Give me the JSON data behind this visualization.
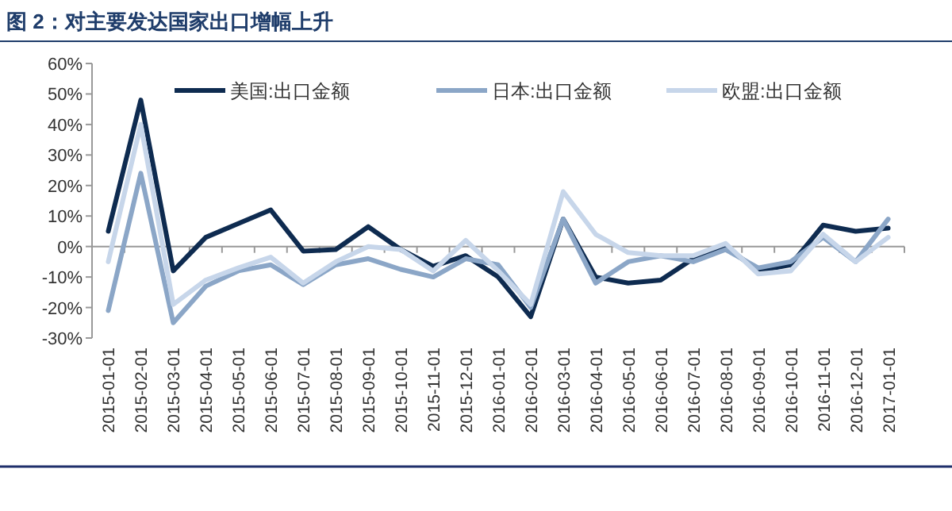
{
  "chart_data": {
    "type": "line",
    "title": "图 2：对主要发达国家出口增幅上升",
    "categories": [
      "2015-01-01",
      "2015-02-01",
      "2015-03-01",
      "2015-04-01",
      "2015-05-01",
      "2015-06-01",
      "2015-07-01",
      "2015-08-01",
      "2015-09-01",
      "2015-10-01",
      "2015-11-01",
      "2015-12-01",
      "2016-01-01",
      "2016-02-01",
      "2016-03-01",
      "2016-04-01",
      "2016-05-01",
      "2016-06-01",
      "2016-07-01",
      "2016-08-01",
      "2016-09-01",
      "2016-10-01",
      "2016-11-01",
      "2016-12-01",
      "2017-01-01"
    ],
    "series": [
      {
        "name": "美国:出口金额",
        "color": "#0e2b50",
        "values": [
          5,
          48,
          -8,
          3,
          7.5,
          12,
          -1.5,
          -1,
          6.5,
          -1,
          -6.5,
          -3,
          -10,
          -23,
          9,
          -10,
          -12,
          -11,
          -4,
          0,
          -8,
          -6,
          7,
          5,
          6
        ]
      },
      {
        "name": "日本:出口金额",
        "color": "#8ba6c7",
        "values": [
          -21,
          24,
          -25,
          -13,
          -8,
          -6,
          -12.5,
          -6,
          -4,
          -7.5,
          -10,
          -4,
          -6,
          -20,
          9,
          -12,
          -5,
          -3,
          -5,
          -1,
          -7,
          -5,
          3,
          -5,
          9
        ]
      },
      {
        "name": "欧盟:出口金额",
        "color": "#c7d6ea",
        "values": [
          -5,
          40,
          -19,
          -11,
          -7,
          -3.5,
          -12,
          -5,
          0,
          -1,
          -8,
          2,
          -8,
          -19,
          18,
          4,
          -2,
          -3,
          -3,
          1,
          -9,
          -8,
          4,
          -5,
          3
        ]
      }
    ],
    "ylim": [
      -30,
      60
    ],
    "yticks": [
      {
        "value": -30,
        "label": "-30%"
      },
      {
        "value": -20,
        "label": "-20%"
      },
      {
        "value": -10,
        "label": "-10%"
      },
      {
        "value": 0,
        "label": "0%"
      },
      {
        "value": 10,
        "label": "10%"
      },
      {
        "value": 20,
        "label": "20%"
      },
      {
        "value": 30,
        "label": "30%"
      },
      {
        "value": 40,
        "label": "40%"
      },
      {
        "value": 50,
        "label": "50%"
      },
      {
        "value": 60,
        "label": "60%"
      }
    ],
    "legend": "top",
    "line_style": "solid",
    "marker": "none"
  }
}
